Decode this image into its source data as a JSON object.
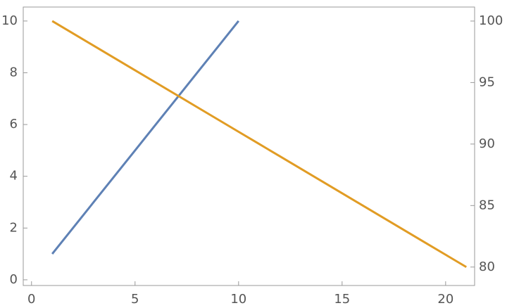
{
  "chart_data": {
    "type": "line",
    "series": [
      {
        "color": "#5e81b5",
        "x": [
          1,
          2,
          3,
          4,
          5,
          6,
          7,
          8,
          9,
          10
        ],
        "values": [
          1,
          2,
          3,
          4,
          5,
          6,
          7,
          8,
          9,
          10
        ]
      },
      {
        "color": "#e19c24",
        "axis": "y2",
        "x": [
          1,
          2,
          3,
          4,
          5,
          6,
          7,
          8,
          9,
          10,
          11,
          12,
          13,
          14,
          15,
          16,
          17,
          18,
          19,
          20,
          21
        ],
        "values": [
          100,
          99,
          98,
          97,
          96,
          95,
          94,
          93,
          92,
          91,
          90,
          89,
          88,
          87,
          86,
          85,
          84,
          83,
          82,
          81,
          80
        ]
      }
    ],
    "xlim": [
      -0.4,
      21.4
    ],
    "xticks": [
      0,
      5,
      10,
      15,
      20
    ],
    "ylim": [
      -0.22,
      10.54
    ],
    "yticks": [
      0,
      2,
      4,
      6,
      8,
      10
    ],
    "y2lim": [
      78.5,
      101.14
    ],
    "y2ticks": [
      80,
      85,
      90,
      95,
      100
    ]
  }
}
